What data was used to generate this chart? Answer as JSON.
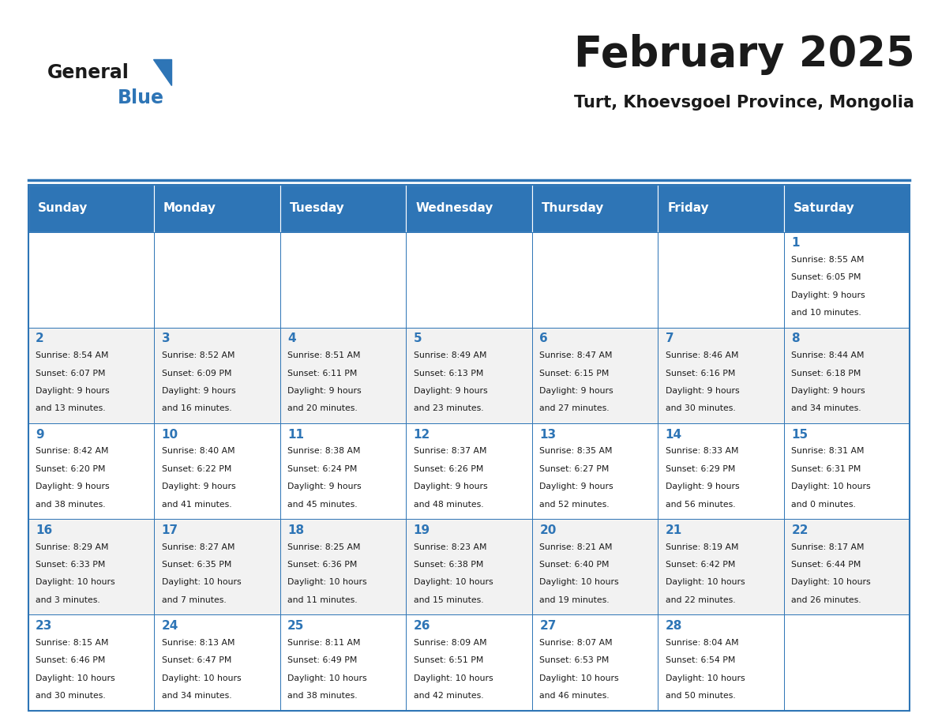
{
  "title": "February 2025",
  "subtitle": "Turt, Khoevsgoel Province, Mongolia",
  "header_color": "#2E75B6",
  "header_text_color": "#FFFFFF",
  "cell_bg_even": "#F2F2F2",
  "cell_bg_odd": "#FFFFFF",
  "border_color": "#2E75B6",
  "day_headers": [
    "Sunday",
    "Monday",
    "Tuesday",
    "Wednesday",
    "Thursday",
    "Friday",
    "Saturday"
  ],
  "days_data": [
    {
      "day": 1,
      "col": 6,
      "row": 0,
      "sunrise": "8:55 AM",
      "sunset": "6:05 PM",
      "daylight": "9 hours and 10 minutes."
    },
    {
      "day": 2,
      "col": 0,
      "row": 1,
      "sunrise": "8:54 AM",
      "sunset": "6:07 PM",
      "daylight": "9 hours and 13 minutes."
    },
    {
      "day": 3,
      "col": 1,
      "row": 1,
      "sunrise": "8:52 AM",
      "sunset": "6:09 PM",
      "daylight": "9 hours and 16 minutes."
    },
    {
      "day": 4,
      "col": 2,
      "row": 1,
      "sunrise": "8:51 AM",
      "sunset": "6:11 PM",
      "daylight": "9 hours and 20 minutes."
    },
    {
      "day": 5,
      "col": 3,
      "row": 1,
      "sunrise": "8:49 AM",
      "sunset": "6:13 PM",
      "daylight": "9 hours and 23 minutes."
    },
    {
      "day": 6,
      "col": 4,
      "row": 1,
      "sunrise": "8:47 AM",
      "sunset": "6:15 PM",
      "daylight": "9 hours and 27 minutes."
    },
    {
      "day": 7,
      "col": 5,
      "row": 1,
      "sunrise": "8:46 AM",
      "sunset": "6:16 PM",
      "daylight": "9 hours and 30 minutes."
    },
    {
      "day": 8,
      "col": 6,
      "row": 1,
      "sunrise": "8:44 AM",
      "sunset": "6:18 PM",
      "daylight": "9 hours and 34 minutes."
    },
    {
      "day": 9,
      "col": 0,
      "row": 2,
      "sunrise": "8:42 AM",
      "sunset": "6:20 PM",
      "daylight": "9 hours and 38 minutes."
    },
    {
      "day": 10,
      "col": 1,
      "row": 2,
      "sunrise": "8:40 AM",
      "sunset": "6:22 PM",
      "daylight": "9 hours and 41 minutes."
    },
    {
      "day": 11,
      "col": 2,
      "row": 2,
      "sunrise": "8:38 AM",
      "sunset": "6:24 PM",
      "daylight": "9 hours and 45 minutes."
    },
    {
      "day": 12,
      "col": 3,
      "row": 2,
      "sunrise": "8:37 AM",
      "sunset": "6:26 PM",
      "daylight": "9 hours and 48 minutes."
    },
    {
      "day": 13,
      "col": 4,
      "row": 2,
      "sunrise": "8:35 AM",
      "sunset": "6:27 PM",
      "daylight": "9 hours and 52 minutes."
    },
    {
      "day": 14,
      "col": 5,
      "row": 2,
      "sunrise": "8:33 AM",
      "sunset": "6:29 PM",
      "daylight": "9 hours and 56 minutes."
    },
    {
      "day": 15,
      "col": 6,
      "row": 2,
      "sunrise": "8:31 AM",
      "sunset": "6:31 PM",
      "daylight": "10 hours and 0 minutes."
    },
    {
      "day": 16,
      "col": 0,
      "row": 3,
      "sunrise": "8:29 AM",
      "sunset": "6:33 PM",
      "daylight": "10 hours and 3 minutes."
    },
    {
      "day": 17,
      "col": 1,
      "row": 3,
      "sunrise": "8:27 AM",
      "sunset": "6:35 PM",
      "daylight": "10 hours and 7 minutes."
    },
    {
      "day": 18,
      "col": 2,
      "row": 3,
      "sunrise": "8:25 AM",
      "sunset": "6:36 PM",
      "daylight": "10 hours and 11 minutes."
    },
    {
      "day": 19,
      "col": 3,
      "row": 3,
      "sunrise": "8:23 AM",
      "sunset": "6:38 PM",
      "daylight": "10 hours and 15 minutes."
    },
    {
      "day": 20,
      "col": 4,
      "row": 3,
      "sunrise": "8:21 AM",
      "sunset": "6:40 PM",
      "daylight": "10 hours and 19 minutes."
    },
    {
      "day": 21,
      "col": 5,
      "row": 3,
      "sunrise": "8:19 AM",
      "sunset": "6:42 PM",
      "daylight": "10 hours and 22 minutes."
    },
    {
      "day": 22,
      "col": 6,
      "row": 3,
      "sunrise": "8:17 AM",
      "sunset": "6:44 PM",
      "daylight": "10 hours and 26 minutes."
    },
    {
      "day": 23,
      "col": 0,
      "row": 4,
      "sunrise": "8:15 AM",
      "sunset": "6:46 PM",
      "daylight": "10 hours and 30 minutes."
    },
    {
      "day": 24,
      "col": 1,
      "row": 4,
      "sunrise": "8:13 AM",
      "sunset": "6:47 PM",
      "daylight": "10 hours and 34 minutes."
    },
    {
      "day": 25,
      "col": 2,
      "row": 4,
      "sunrise": "8:11 AM",
      "sunset": "6:49 PM",
      "daylight": "10 hours and 38 minutes."
    },
    {
      "day": 26,
      "col": 3,
      "row": 4,
      "sunrise": "8:09 AM",
      "sunset": "6:51 PM",
      "daylight": "10 hours and 42 minutes."
    },
    {
      "day": 27,
      "col": 4,
      "row": 4,
      "sunrise": "8:07 AM",
      "sunset": "6:53 PM",
      "daylight": "10 hours and 46 minutes."
    },
    {
      "day": 28,
      "col": 5,
      "row": 4,
      "sunrise": "8:04 AM",
      "sunset": "6:54 PM",
      "daylight": "10 hours and 50 minutes."
    }
  ]
}
